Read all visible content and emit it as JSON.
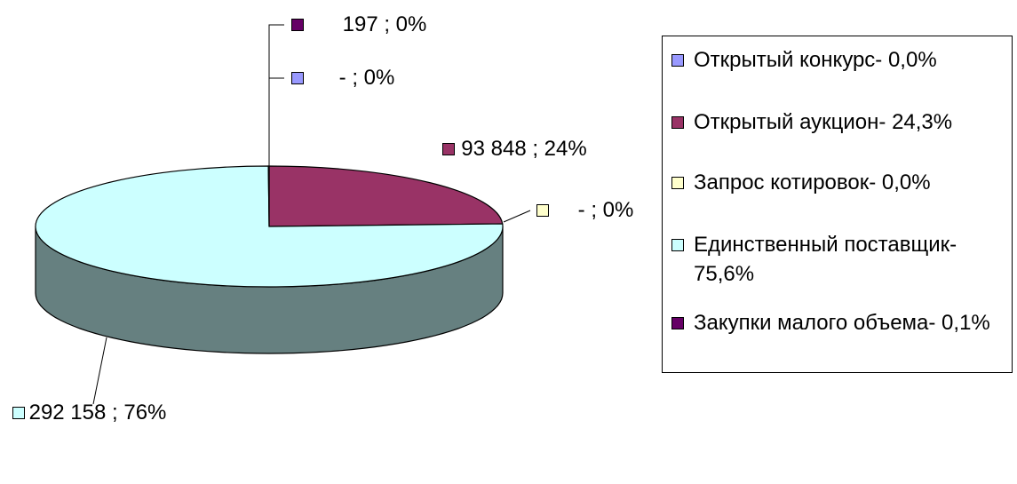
{
  "chart_data": {
    "type": "pie3d",
    "categories": [
      "Открытый конкурс- 0,0%",
      "Открытый аукцион- 24,3%",
      "Запрос котировок- 0,0%",
      "Единственный поставщик- 75,6%",
      "Закупки малого объема- 0,1%"
    ],
    "values": [
      0,
      93848,
      0,
      292158,
      197
    ],
    "value_labels": [
      "- ; 0%",
      "93 848 ; 24%",
      "- ; 0%",
      "292 158 ; 76%",
      "197 ; 0%"
    ],
    "colors": [
      "#9999ff",
      "#993366",
      "#ffffcc",
      "#ccffff",
      "#660066"
    ],
    "legend": "right"
  }
}
